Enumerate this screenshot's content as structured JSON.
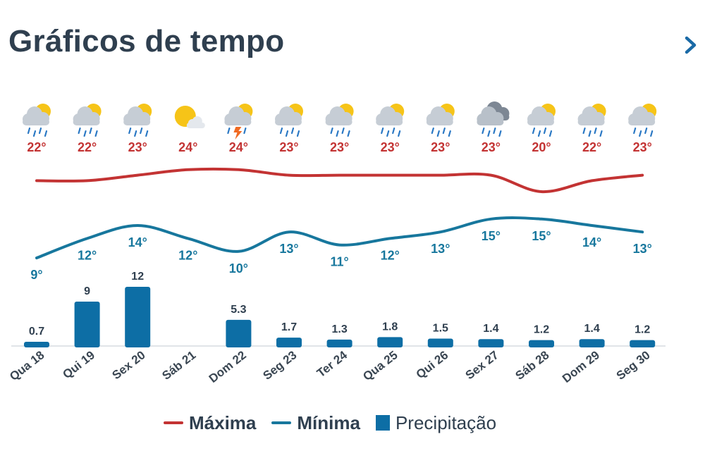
{
  "header": {
    "title": "Gráficos de tempo",
    "next_icon": "chevron-right-icon"
  },
  "colors": {
    "max": "#c33333",
    "min": "#17779d",
    "precip": "#0d6ea5",
    "text": "#2f3f4f",
    "accent": "#1a6aa6"
  },
  "chart_data": {
    "type": "line",
    "categories": [
      "Qua 18",
      "Qui 19",
      "Sex 20",
      "Sáb 21",
      "Dom 22",
      "Seg 23",
      "Ter 24",
      "Qua 25",
      "Qui 26",
      "Sex 27",
      "Sáb 28",
      "Dom 29",
      "Seg 30"
    ],
    "weather_icons": [
      "rain-sun-icon",
      "rain-sun-icon",
      "rain-sun-icon",
      "partly-cloudy-icon",
      "thunderstorm-sun-icon",
      "rain-sun-icon",
      "rain-sun-icon",
      "rain-sun-icon",
      "rain-sun-icon",
      "rain-cloud-icon",
      "rain-sun-icon",
      "rain-sun-icon",
      "rain-sun-icon"
    ],
    "series": [
      {
        "name": "Máxima",
        "type": "line",
        "values": [
          22,
          22,
          23,
          24,
          24,
          23,
          23,
          23,
          23,
          23,
          20,
          22,
          23
        ],
        "labels": [
          "22°",
          "22°",
          "23°",
          "24°",
          "24°",
          "23°",
          "23°",
          "23°",
          "23°",
          "23°",
          "20°",
          "22°",
          "23°"
        ]
      },
      {
        "name": "Mínima",
        "type": "line",
        "values": [
          9,
          12,
          14,
          12,
          10,
          13,
          11,
          12,
          13,
          15,
          15,
          14,
          13
        ],
        "labels": [
          "9°",
          "12°",
          "14°",
          "12°",
          "10°",
          "13°",
          "11°",
          "12°",
          "13°",
          "15°",
          "15°",
          "14°",
          "13°"
        ]
      },
      {
        "name": "Precipitação",
        "type": "bar",
        "values": [
          0.7,
          9,
          12,
          0,
          5.3,
          1.7,
          1.3,
          1.8,
          1.5,
          1.4,
          1.2,
          1.4,
          1.2
        ],
        "labels": [
          "0.7",
          "9",
          "12",
          "",
          "5.3",
          "1.7",
          "1.3",
          "1.8",
          "1.5",
          "1.4",
          "1.2",
          "1.4",
          "1.2"
        ]
      }
    ],
    "legend_position": "bottom"
  }
}
